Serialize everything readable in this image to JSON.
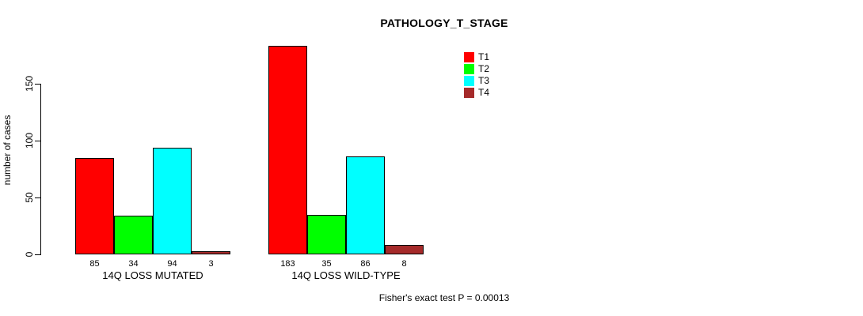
{
  "chart_data": {
    "type": "bar",
    "title": "PATHOLOGY_T_STAGE",
    "xlabel": "",
    "ylabel": "number of cases",
    "ylim": [
      0,
      150
    ],
    "yticks": [
      0,
      50,
      100,
      150
    ],
    "grid": false,
    "legend_position": "top-right",
    "categories": [
      "14Q LOSS MUTATED",
      "14Q LOSS WILD-TYPE"
    ],
    "series": [
      {
        "name": "T1",
        "color": "#ff0000",
        "values": [
          85,
          183
        ]
      },
      {
        "name": "T2",
        "color": "#00ff00",
        "values": [
          34,
          35
        ]
      },
      {
        "name": "T3",
        "color": "#00ffff",
        "values": [
          94,
          86
        ]
      },
      {
        "name": "T4",
        "color": "#a52a2a",
        "values": [
          3,
          8
        ]
      }
    ],
    "bar_value_labels_shown": true,
    "annotation": "Fisher's exact test P = 0.00013",
    "colors": {
      "axis": "#000000",
      "text": "#000000",
      "background": "#ffffff"
    }
  }
}
